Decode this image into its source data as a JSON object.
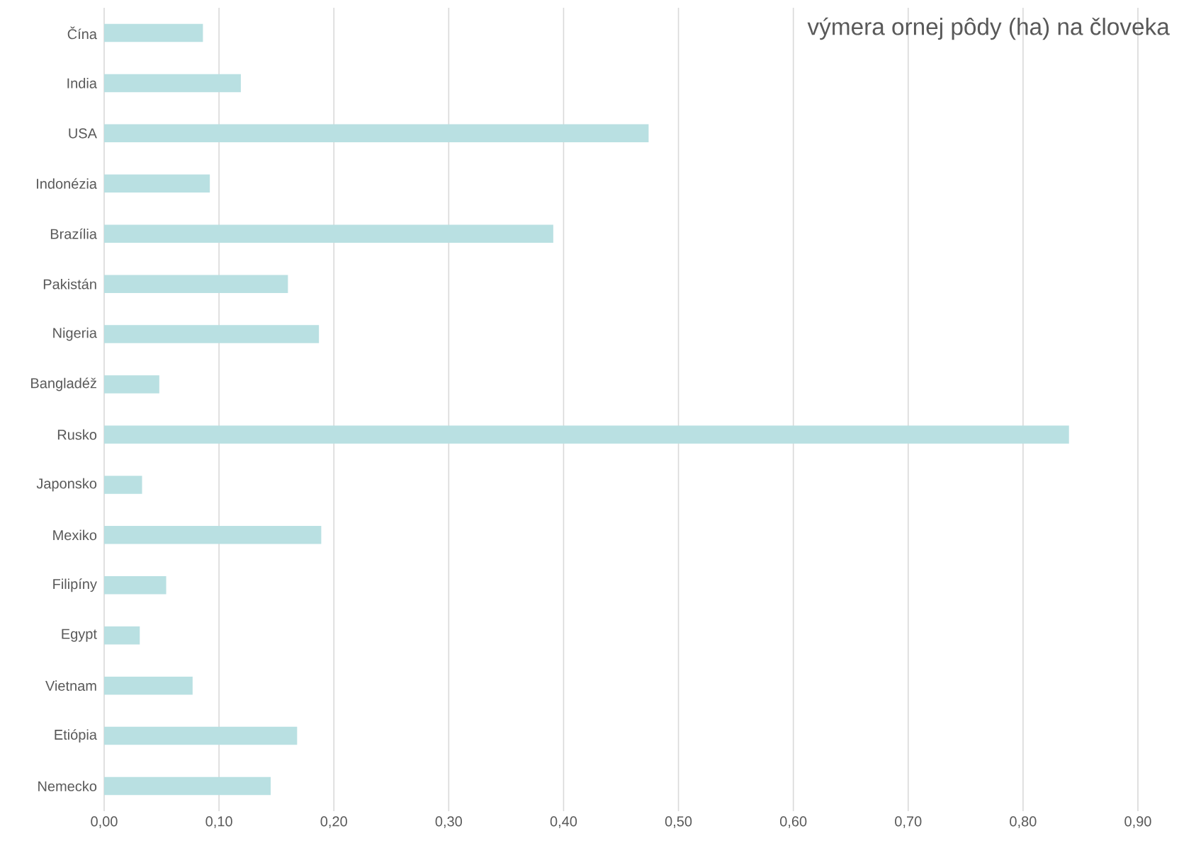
{
  "chart_data": {
    "type": "bar",
    "orientation": "horizontal",
    "title": "výmera ornej pôdy (ha) na človeka",
    "categories": [
      "Čína",
      "India",
      "USA",
      "Indonézia",
      "Brazília",
      "Pakistán",
      "Nigeria",
      "Bangladéž",
      "Rusko",
      "Japonsko",
      "Mexiko",
      "Filipíny",
      "Egypt",
      "Vietnam",
      "Etiópia",
      "Nemecko"
    ],
    "values": [
      0.086,
      0.119,
      0.474,
      0.092,
      0.391,
      0.16,
      0.187,
      0.048,
      0.84,
      0.033,
      0.189,
      0.054,
      0.031,
      0.077,
      0.168,
      0.145
    ],
    "color": "#b9e0e2",
    "xlim": [
      0,
      0.9
    ],
    "xticks": [
      {
        "value": 0,
        "label": "0,00"
      },
      {
        "value": 0.1,
        "label": "0,10"
      },
      {
        "value": 0.2,
        "label": "0,20"
      },
      {
        "value": 0.3,
        "label": "0,30"
      },
      {
        "value": 0.4,
        "label": "0,40"
      },
      {
        "value": 0.5,
        "label": "0,50"
      },
      {
        "value": 0.6,
        "label": "0,60"
      },
      {
        "value": 0.7,
        "label": "0,70"
      },
      {
        "value": 0.8,
        "label": "0,80"
      },
      {
        "value": 0.9,
        "label": "0,90"
      }
    ],
    "grid": "x"
  }
}
